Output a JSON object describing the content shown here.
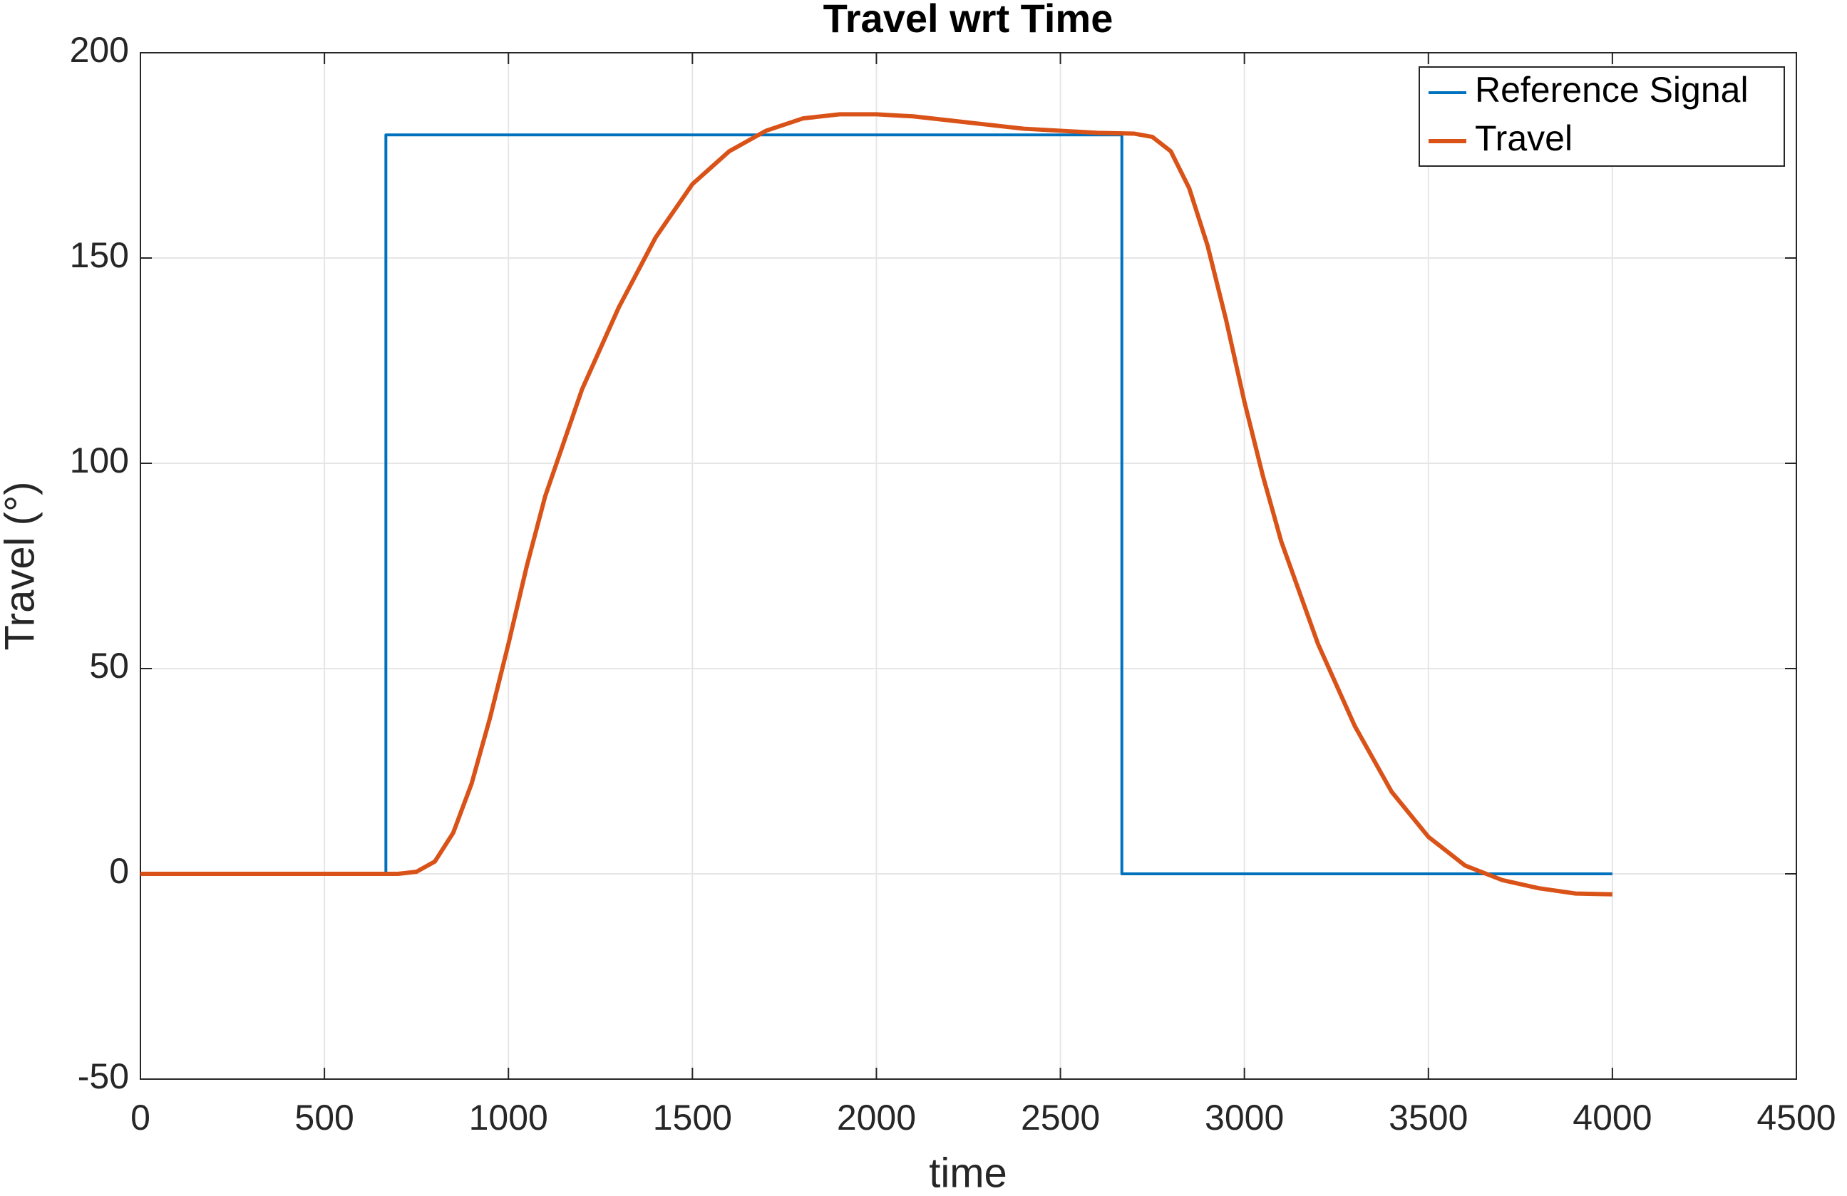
{
  "chart_data": {
    "type": "line",
    "title": "Travel wrt Time",
    "xlabel": "time",
    "ylabel": "Travel (°)",
    "xlim": [
      0,
      4500
    ],
    "xticks": [
      0,
      500,
      1000,
      1500,
      2000,
      2500,
      3000,
      3500,
      4000,
      4500
    ],
    "ylim": [
      -50,
      200
    ],
    "yticks": [
      -50,
      0,
      50,
      100,
      150,
      200
    ],
    "grid": true,
    "legend": "upper right",
    "series": [
      {
        "name": "Reference Signal",
        "color": "#0072bd",
        "x": [
          0,
          667,
          667,
          2667,
          2667,
          4000
        ],
        "values": [
          0,
          0,
          180,
          180,
          0,
          0
        ]
      },
      {
        "name": "Travel",
        "color": "#d95319",
        "x": [
          0,
          600,
          700,
          750,
          800,
          850,
          900,
          950,
          1000,
          1050,
          1100,
          1200,
          1300,
          1400,
          1500,
          1600,
          1700,
          1800,
          1900,
          2000,
          2100,
          2200,
          2300,
          2400,
          2500,
          2600,
          2700,
          2750,
          2800,
          2850,
          2900,
          2950,
          3000,
          3050,
          3100,
          3200,
          3300,
          3400,
          3500,
          3600,
          3700,
          3800,
          3900,
          4000
        ],
        "values": [
          0,
          0,
          0,
          0.5,
          3,
          10,
          22,
          38,
          56,
          75,
          92,
          118,
          138,
          155,
          168,
          176,
          181,
          184,
          185,
          185,
          184.5,
          183.5,
          182.5,
          181.5,
          181,
          180.5,
          180.3,
          179.5,
          176,
          167,
          153,
          135,
          115,
          97,
          81,
          56,
          36,
          20,
          9,
          2,
          -1.5,
          -3.5,
          -4.8,
          -5
        ]
      }
    ]
  }
}
